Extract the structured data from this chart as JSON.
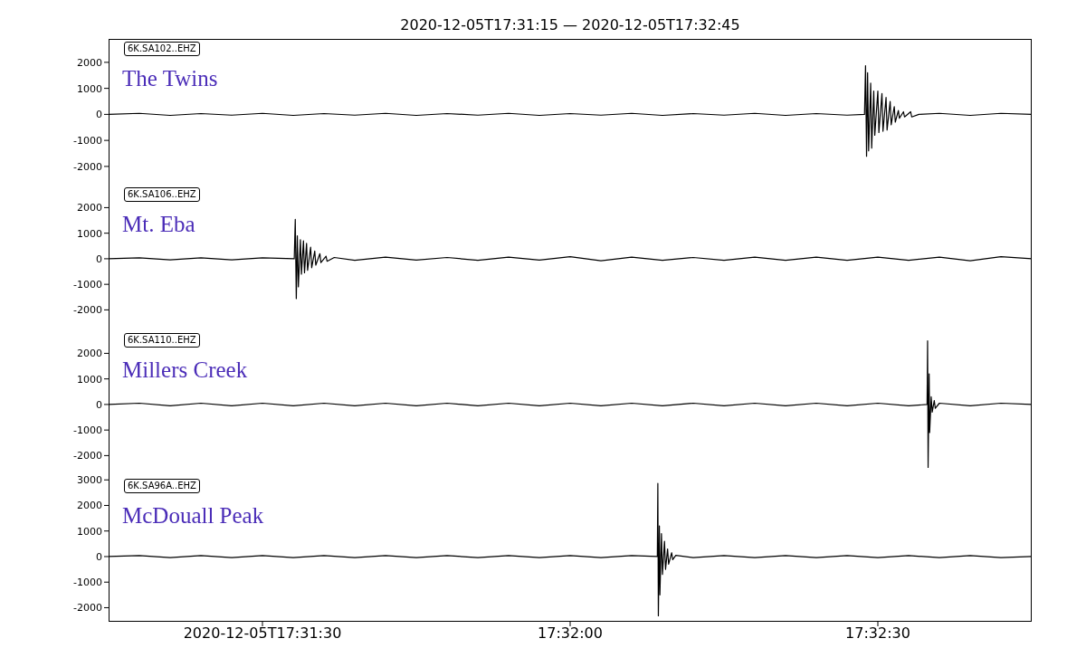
{
  "chart_data": [
    {
      "type": "line",
      "title": "2020-12-05T17:31:15 — 2020-12-05T17:32:45",
      "annotations": [
        "6K.SA102..EHZ",
        "The Twins"
      ],
      "xlim": [
        "2020-12-05T17:31:15",
        "2020-12-05T17:32:45"
      ],
      "ylim": [
        -2700,
        2900
      ],
      "yticks": [
        -2000,
        -1000,
        0,
        1000,
        2000
      ],
      "tick_labels": "y",
      "marker": "none",
      "line_style": "solid",
      "series": [
        {
          "color": "#000000",
          "x": [
            "2020-12-05T17:31:15",
            "2020-12-05T17:31:18",
            "2020-12-05T17:31:21",
            "2020-12-05T17:31:24",
            "2020-12-05T17:31:27",
            "2020-12-05T17:31:30",
            "2020-12-05T17:31:33",
            "2020-12-05T17:31:36",
            "2020-12-05T17:31:39",
            "2020-12-05T17:31:42",
            "2020-12-05T17:31:45",
            "2020-12-05T17:31:48",
            "2020-12-05T17:31:51",
            "2020-12-05T17:31:54",
            "2020-12-05T17:31:57",
            "2020-12-05T17:32:00",
            "2020-12-05T17:32:03",
            "2020-12-05T17:32:06",
            "2020-12-05T17:32:09",
            "2020-12-05T17:32:12",
            "2020-12-05T17:32:15",
            "2020-12-05T17:32:18",
            "2020-12-05T17:32:21",
            "2020-12-05T17:32:24",
            "2020-12-05T17:32:27",
            "2020-12-05T17:32:28.7",
            "2020-12-05T17:32:28.8",
            "2020-12-05T17:32:28.9",
            "2020-12-05T17:32:29",
            "2020-12-05T17:32:29.1",
            "2020-12-05T17:32:29.3",
            "2020-12-05T17:32:29.4",
            "2020-12-05T17:32:29.6",
            "2020-12-05T17:32:29.7",
            "2020-12-05T17:32:30",
            "2020-12-05T17:32:30.1",
            "2020-12-05T17:32:30.4",
            "2020-12-05T17:32:30.5",
            "2020-12-05T17:32:30.8",
            "2020-12-05T17:32:30.9",
            "2020-12-05T17:32:31.2",
            "2020-12-05T17:32:31.3",
            "2020-12-05T17:32:31.6",
            "2020-12-05T17:32:31.7",
            "2020-12-05T17:32:32",
            "2020-12-05T17:32:32.1",
            "2020-12-05T17:32:32.5",
            "2020-12-05T17:32:32.6",
            "2020-12-05T17:32:33.2",
            "2020-12-05T17:32:33.3",
            "2020-12-05T17:32:34",
            "2020-12-05T17:32:36",
            "2020-12-05T17:32:39",
            "2020-12-05T17:32:42",
            "2020-12-05T17:32:45"
          ],
          "values": [
            0,
            40,
            -40,
            30,
            -30,
            40,
            -40,
            30,
            -30,
            40,
            -40,
            30,
            -30,
            40,
            -40,
            30,
            -30,
            40,
            -40,
            30,
            -30,
            40,
            -40,
            30,
            -30,
            0,
            1870,
            -1610,
            1600,
            -1400,
            1200,
            -1300,
            900,
            -800,
            900,
            -700,
            800,
            -650,
            650,
            -600,
            500,
            -400,
            300,
            -300,
            150,
            -150,
            100,
            -100,
            100,
            -100,
            0,
            40,
            -40,
            40,
            0
          ]
        }
      ]
    },
    {
      "type": "line",
      "annotations": [
        "6K.SA106..EHZ",
        "Mt. Eba"
      ],
      "xlim": [
        "2020-12-05T17:31:15",
        "2020-12-05T17:32:45"
      ],
      "ylim": [
        -2800,
        2900
      ],
      "yticks": [
        -2000,
        -1000,
        0,
        1000,
        2000
      ],
      "tick_labels": "y",
      "marker": "none",
      "line_style": "solid",
      "series": [
        {
          "color": "#000000",
          "x": [
            "2020-12-05T17:31:15",
            "2020-12-05T17:31:18",
            "2020-12-05T17:31:21",
            "2020-12-05T17:31:24",
            "2020-12-05T17:31:27",
            "2020-12-05T17:31:30",
            "2020-12-05T17:31:33.1",
            "2020-12-05T17:31:33.2",
            "2020-12-05T17:31:33.3",
            "2020-12-05T17:31:33.4",
            "2020-12-05T17:31:33.5",
            "2020-12-05T17:31:33.7",
            "2020-12-05T17:31:33.8",
            "2020-12-05T17:31:34",
            "2020-12-05T17:31:34.1",
            "2020-12-05T17:31:34.3",
            "2020-12-05T17:31:34.4",
            "2020-12-05T17:31:34.7",
            "2020-12-05T17:31:34.8",
            "2020-12-05T17:31:35.1",
            "2020-12-05T17:31:35.2",
            "2020-12-05T17:31:35.6",
            "2020-12-05T17:31:35.7",
            "2020-12-05T17:31:36.2",
            "2020-12-05T17:31:36.3",
            "2020-12-05T17:31:37",
            "2020-12-05T17:31:39",
            "2020-12-05T17:31:42",
            "2020-12-05T17:31:45",
            "2020-12-05T17:31:48",
            "2020-12-05T17:31:51",
            "2020-12-05T17:31:54",
            "2020-12-05T17:31:57",
            "2020-12-05T17:32:00",
            "2020-12-05T17:32:03",
            "2020-12-05T17:32:06",
            "2020-12-05T17:32:09",
            "2020-12-05T17:32:12",
            "2020-12-05T17:32:15",
            "2020-12-05T17:32:18",
            "2020-12-05T17:32:21",
            "2020-12-05T17:32:24",
            "2020-12-05T17:32:27",
            "2020-12-05T17:32:30",
            "2020-12-05T17:32:33",
            "2020-12-05T17:32:36",
            "2020-12-05T17:32:39",
            "2020-12-05T17:32:42",
            "2020-12-05T17:32:45"
          ],
          "values": [
            0,
            40,
            -40,
            40,
            -40,
            40,
            0,
            1540,
            -1560,
            900,
            -1100,
            750,
            -600,
            700,
            -550,
            600,
            -450,
            450,
            -350,
            300,
            -250,
            200,
            -150,
            100,
            -100,
            50,
            -60,
            60,
            -50,
            50,
            -60,
            60,
            -50,
            80,
            -80,
            60,
            -60,
            50,
            -60,
            60,
            -60,
            60,
            -60,
            60,
            -60,
            60,
            -80,
            80,
            0
          ]
        }
      ]
    },
    {
      "type": "line",
      "annotations": [
        "6K.SA110..EHZ",
        "Millers Creek"
      ],
      "xlim": [
        "2020-12-05T17:31:15",
        "2020-12-05T17:32:45"
      ],
      "ylim": [
        -2800,
        2900
      ],
      "yticks": [
        -2000,
        -1000,
        0,
        1000,
        2000
      ],
      "tick_labels": "y",
      "marker": "none",
      "line_style": "solid",
      "series": [
        {
          "color": "#000000",
          "x": [
            "2020-12-05T17:31:15",
            "2020-12-05T17:31:18",
            "2020-12-05T17:31:21",
            "2020-12-05T17:31:24",
            "2020-12-05T17:31:27",
            "2020-12-05T17:31:30",
            "2020-12-05T17:31:33",
            "2020-12-05T17:31:36",
            "2020-12-05T17:31:39",
            "2020-12-05T17:31:42",
            "2020-12-05T17:31:45",
            "2020-12-05T17:31:48",
            "2020-12-05T17:31:51",
            "2020-12-05T17:31:54",
            "2020-12-05T17:31:57",
            "2020-12-05T17:32:00",
            "2020-12-05T17:32:03",
            "2020-12-05T17:32:06",
            "2020-12-05T17:32:09",
            "2020-12-05T17:32:12",
            "2020-12-05T17:32:15",
            "2020-12-05T17:32:18",
            "2020-12-05T17:32:21",
            "2020-12-05T17:32:24",
            "2020-12-05T17:32:27",
            "2020-12-05T17:32:30",
            "2020-12-05T17:32:33",
            "2020-12-05T17:32:34.8",
            "2020-12-05T17:32:34.85",
            "2020-12-05T17:32:34.9",
            "2020-12-05T17:32:35",
            "2020-12-05T17:32:35.05",
            "2020-12-05T17:32:35.2",
            "2020-12-05T17:32:35.3",
            "2020-12-05T17:32:35.5",
            "2020-12-05T17:32:35.6",
            "2020-12-05T17:32:36",
            "2020-12-05T17:32:39",
            "2020-12-05T17:32:42",
            "2020-12-05T17:32:45"
          ],
          "values": [
            0,
            50,
            -50,
            50,
            -50,
            50,
            -50,
            50,
            -50,
            50,
            -50,
            50,
            -50,
            50,
            -50,
            50,
            -50,
            50,
            -50,
            50,
            -50,
            50,
            -50,
            50,
            -50,
            50,
            -50,
            0,
            2490,
            -2460,
            1200,
            -1100,
            300,
            -300,
            150,
            -150,
            50,
            -50,
            50,
            0
          ]
        }
      ]
    },
    {
      "type": "line",
      "annotations": [
        "6K.SA96A..EHZ",
        "McDouall Peak"
      ],
      "xlim": [
        "2020-12-05T17:31:15",
        "2020-12-05T17:32:45"
      ],
      "xticks": [
        {
          "value": "2020-12-05T17:31:30",
          "label": "2020-12-05T17:31:30"
        },
        {
          "value": "2020-12-05T17:32:00",
          "label": "17:32:00"
        },
        {
          "value": "2020-12-05T17:32:30",
          "label": "17:32:30"
        }
      ],
      "ylim": [
        -2550,
        3150
      ],
      "yticks": [
        -2000,
        -1000,
        0,
        1000,
        2000,
        3000
      ],
      "marker": "none",
      "line_style": "solid",
      "series": [
        {
          "color": "#000000",
          "x": [
            "2020-12-05T17:31:15",
            "2020-12-05T17:31:18",
            "2020-12-05T17:31:21",
            "2020-12-05T17:31:24",
            "2020-12-05T17:31:27",
            "2020-12-05T17:31:30",
            "2020-12-05T17:31:33",
            "2020-12-05T17:31:36",
            "2020-12-05T17:31:39",
            "2020-12-05T17:31:42",
            "2020-12-05T17:31:45",
            "2020-12-05T17:31:48",
            "2020-12-05T17:31:51",
            "2020-12-05T17:31:54",
            "2020-12-05T17:31:57",
            "2020-12-05T17:32:00",
            "2020-12-05T17:32:03",
            "2020-12-05T17:32:06",
            "2020-12-05T17:32:08.5",
            "2020-12-05T17:32:08.55",
            "2020-12-05T17:32:08.6",
            "2020-12-05T17:32:08.7",
            "2020-12-05T17:32:08.75",
            "2020-12-05T17:32:08.9",
            "2020-12-05T17:32:09",
            "2020-12-05T17:32:09.2",
            "2020-12-05T17:32:09.3",
            "2020-12-05T17:32:09.5",
            "2020-12-05T17:32:09.6",
            "2020-12-05T17:32:09.9",
            "2020-12-05T17:32:10",
            "2020-12-05T17:32:10.3",
            "2020-12-05T17:32:12",
            "2020-12-05T17:32:15",
            "2020-12-05T17:32:18",
            "2020-12-05T17:32:21",
            "2020-12-05T17:32:24",
            "2020-12-05T17:32:27",
            "2020-12-05T17:32:30",
            "2020-12-05T17:32:33",
            "2020-12-05T17:32:36",
            "2020-12-05T17:32:39",
            "2020-12-05T17:32:42",
            "2020-12-05T17:32:45"
          ],
          "values": [
            0,
            40,
            -40,
            40,
            -40,
            40,
            -40,
            40,
            -40,
            40,
            -40,
            40,
            -40,
            40,
            -40,
            40,
            -40,
            40,
            0,
            2860,
            -2320,
            1200,
            -1500,
            900,
            -700,
            600,
            -500,
            300,
            -300,
            150,
            -120,
            50,
            -40,
            40,
            -40,
            40,
            -40,
            40,
            -40,
            40,
            -40,
            40,
            -40,
            0
          ]
        }
      ]
    }
  ]
}
